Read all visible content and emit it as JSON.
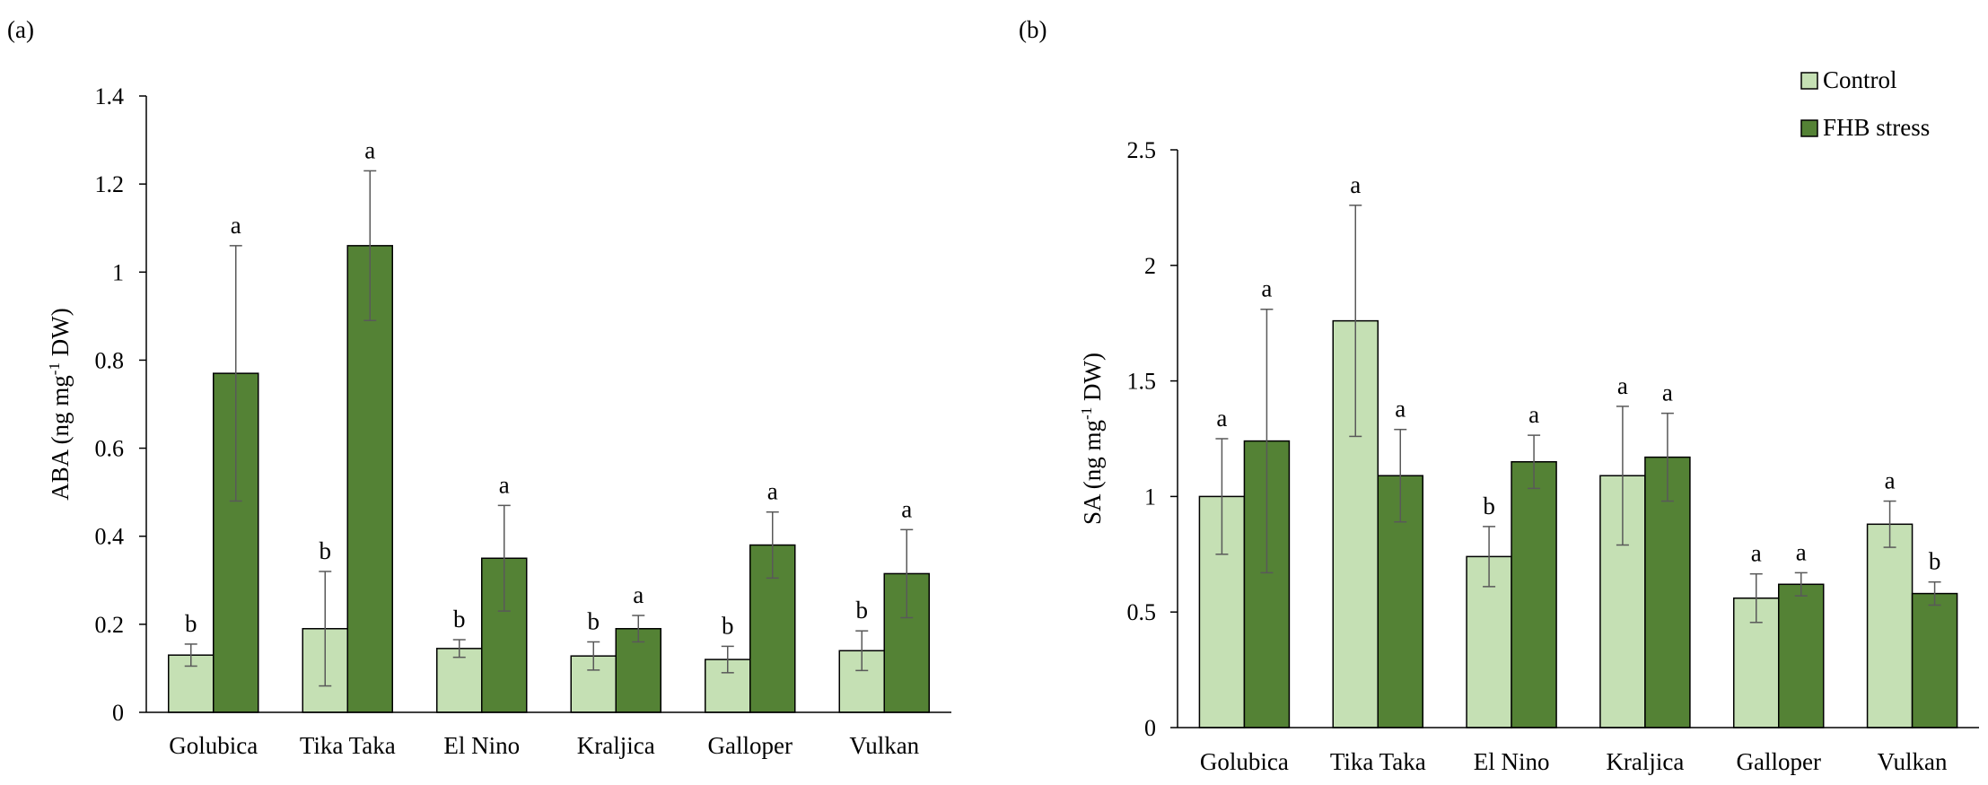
{
  "figure": {
    "legend": [
      {
        "name": "Control",
        "color": "#c5e0b4"
      },
      {
        "name": "FHB stress",
        "color": "#548235"
      }
    ]
  },
  "chart_data": [
    {
      "type": "bar",
      "panel_label": "(a)",
      "ylabel": "ABA (ng mg-1 DW)",
      "ylabel_parts": {
        "before": "ABA (ng mg",
        "sup": "-1",
        "after": " DW)"
      },
      "categories": [
        "Golubica",
        "Tika Taka",
        "El Nino",
        "Kraljica",
        "Galloper",
        "Vulkan"
      ],
      "ylim": [
        0,
        1.4
      ],
      "yticks": [
        0,
        0.2,
        0.4,
        0.6,
        0.8,
        1,
        1.2,
        1.4
      ],
      "ytick_labels": [
        "0",
        "0.2",
        "0.4",
        "0.6",
        "0.8",
        "1",
        "1.2",
        "1.4"
      ],
      "grid": false,
      "series": [
        {
          "name": "Control",
          "color": "#c5e0b4",
          "values": [
            0.13,
            0.19,
            0.145,
            0.128,
            0.12,
            0.14
          ],
          "errors": [
            0.025,
            0.13,
            0.02,
            0.032,
            0.03,
            0.045
          ],
          "letters": [
            "b",
            "b",
            "b",
            "b",
            "b",
            "b"
          ]
        },
        {
          "name": "FHB stress",
          "color": "#548235",
          "values": [
            0.77,
            1.06,
            0.35,
            0.19,
            0.38,
            0.315
          ],
          "errors": [
            0.29,
            0.17,
            0.12,
            0.03,
            0.075,
            0.1
          ],
          "letters": [
            "a",
            "a",
            "a",
            "a",
            "a",
            "a"
          ]
        }
      ]
    },
    {
      "type": "bar",
      "panel_label": "(b)",
      "ylabel": "SA (ng mg-1 DW)",
      "ylabel_parts": {
        "before": "SA (ng mg",
        "sup": "-1",
        "after": " DW)"
      },
      "categories": [
        "Golubica",
        "Tika Taka",
        "El Nino",
        "Kraljica",
        "Galloper",
        "Vulkan"
      ],
      "ylim": [
        0,
        2.5
      ],
      "yticks": [
        0,
        0.5,
        1,
        1.5,
        2,
        2.5
      ],
      "ytick_labels": [
        "0",
        "0.5",
        "1",
        "1.5",
        "2",
        "2.5"
      ],
      "grid": false,
      "legend_position": "top-right",
      "series": [
        {
          "name": "Control",
          "color": "#c5e0b4",
          "values": [
            1.0,
            1.76,
            0.74,
            1.09,
            0.56,
            0.88
          ],
          "errors": [
            0.25,
            0.5,
            0.13,
            0.3,
            0.105,
            0.1
          ],
          "letters": [
            "a",
            "a",
            "b",
            "a",
            "a",
            "a"
          ]
        },
        {
          "name": "FHB stress",
          "color": "#548235",
          "values": [
            1.24,
            1.09,
            1.15,
            1.17,
            0.62,
            0.58
          ],
          "errors": [
            0.57,
            0.2,
            0.115,
            0.19,
            0.05,
            0.05
          ],
          "letters": [
            "a",
            "a",
            "a",
            "a",
            "a",
            "b"
          ]
        }
      ]
    }
  ]
}
